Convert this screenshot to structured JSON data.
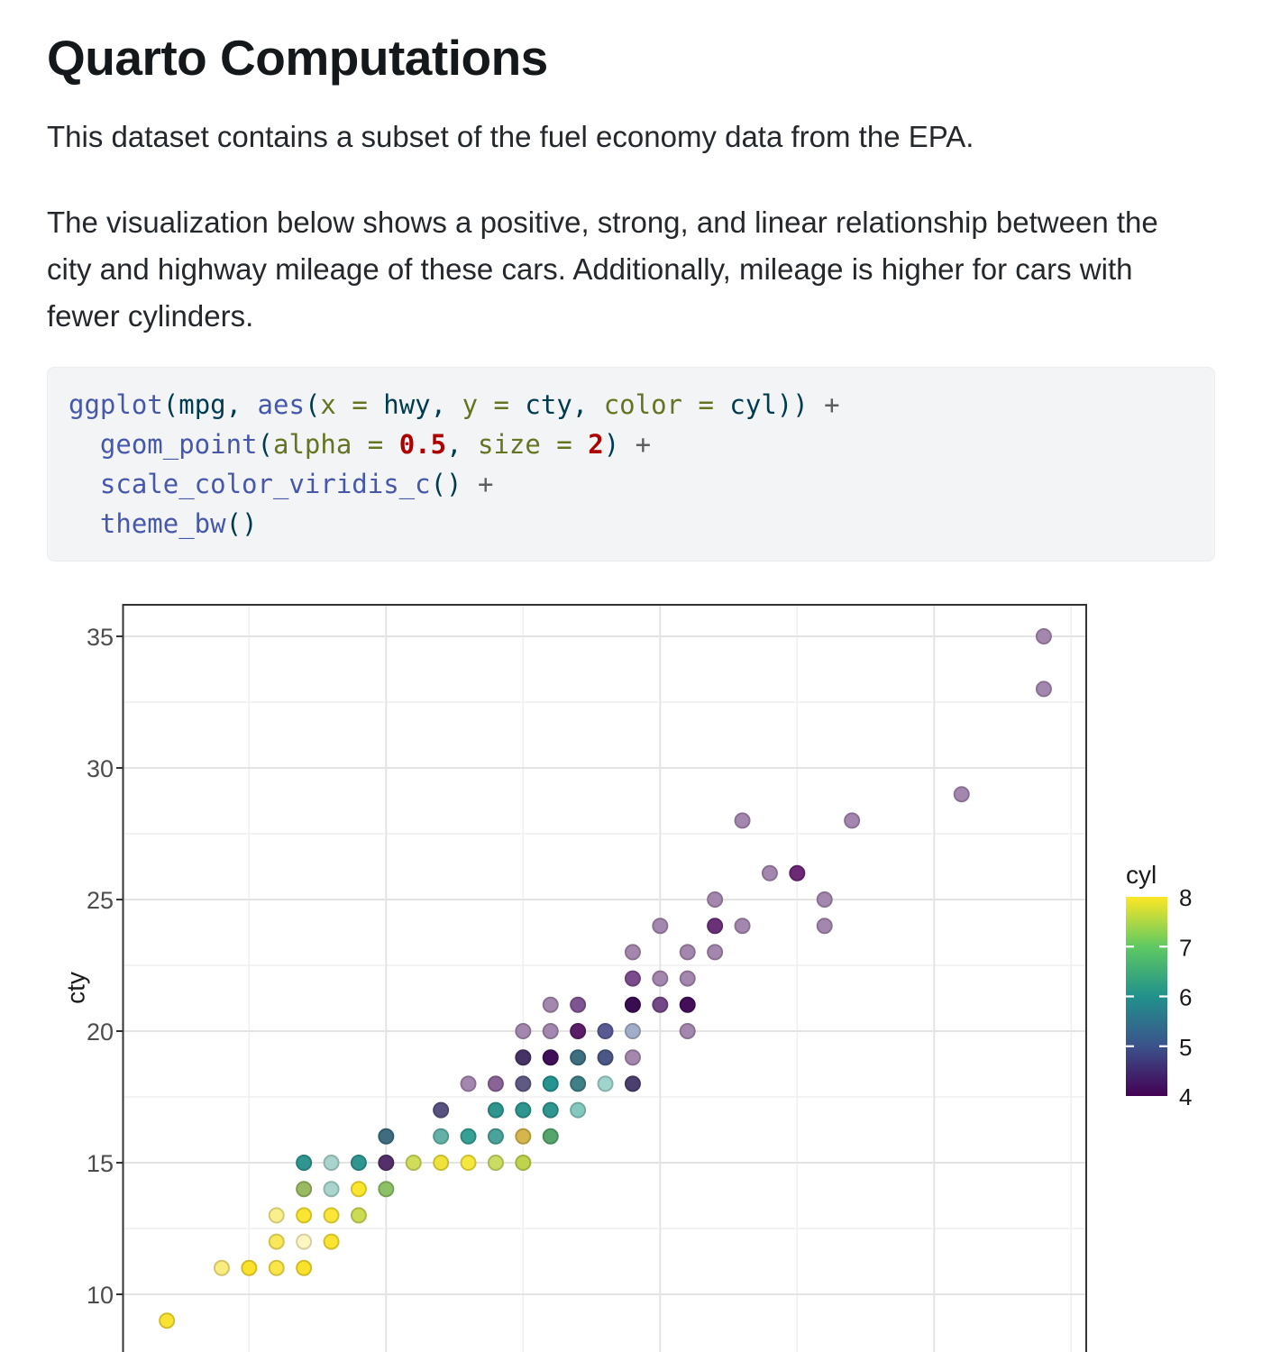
{
  "doc": {
    "title": "Quarto Computations",
    "paragraph1": "This dataset contains a subset of the fuel economy data from the EPA.",
    "paragraph2": "The visualization below shows a positive, strong, and linear relationship between the\ncity and highway mileage of these cars. Additionally, mileage is higher for cars with\nfewer cylinders."
  },
  "code_block": {
    "language": "r",
    "lines": [
      [
        {
          "t": "ggplot",
          "c": "fn"
        },
        {
          "t": "(",
          "c": "pr"
        },
        {
          "t": "mpg",
          "c": "va"
        },
        {
          "t": ", ",
          "c": "pr"
        },
        {
          "t": "aes",
          "c": "fn"
        },
        {
          "t": "(",
          "c": "pr"
        },
        {
          "t": "x = ",
          "c": "kw"
        },
        {
          "t": "hwy",
          "c": "va"
        },
        {
          "t": ", ",
          "c": "pr"
        },
        {
          "t": "y = ",
          "c": "kw"
        },
        {
          "t": "cty",
          "c": "va"
        },
        {
          "t": ", ",
          "c": "pr"
        },
        {
          "t": "color = ",
          "c": "kw"
        },
        {
          "t": "cyl",
          "c": "va"
        },
        {
          "t": "))",
          "c": "pr"
        },
        {
          "t": " +",
          "c": "op"
        }
      ],
      [
        {
          "t": "  ",
          "c": "va"
        },
        {
          "t": "geom_point",
          "c": "fn"
        },
        {
          "t": "(",
          "c": "pr"
        },
        {
          "t": "alpha = ",
          "c": "kw"
        },
        {
          "t": "0.5",
          "c": "nu"
        },
        {
          "t": ", ",
          "c": "pr"
        },
        {
          "t": "size = ",
          "c": "kw"
        },
        {
          "t": "2",
          "c": "nu"
        },
        {
          "t": ")",
          "c": "pr"
        },
        {
          "t": " +",
          "c": "op"
        }
      ],
      [
        {
          "t": "  ",
          "c": "va"
        },
        {
          "t": "scale_color_viridis_c",
          "c": "fn"
        },
        {
          "t": "()",
          "c": "pr"
        },
        {
          "t": " +",
          "c": "op"
        }
      ],
      [
        {
          "t": "  ",
          "c": "va"
        },
        {
          "t": "theme_bw",
          "c": "fn"
        },
        {
          "t": "()",
          "c": "pr"
        }
      ]
    ]
  },
  "chart_data": {
    "type": "scatter",
    "x_field": "hwy",
    "y_field": "cty",
    "ylabel": "cty",
    "xlim_shown": [
      10.4,
      45.6
    ],
    "y_ticks": [
      35,
      30,
      25,
      20,
      15,
      10
    ],
    "y_minor_gridlines": [
      32.5,
      27.5,
      22.5,
      17.5,
      12.5
    ],
    "x_major_gridlines": [
      20,
      30,
      40
    ],
    "x_minor_gridlines": [
      15,
      25,
      35,
      45
    ],
    "grid": true,
    "theme": "bw",
    "point_alpha": 0.5,
    "colors": {
      "panel_border": "#333333",
      "major_grid": "#e4e4e4",
      "minor_grid": "#efefef",
      "tick": "#333333",
      "tick_label": "#4d4d4d",
      "axis_title": "#1a1a1a"
    },
    "legend": {
      "title": "cyl",
      "position": "right",
      "labels": [
        "8",
        "7",
        "6",
        "5",
        "4"
      ],
      "gradient_stops": {
        "8": "#FDE725",
        "7": "#5EC962",
        "6": "#21918C",
        "5": "#3B528B",
        "4": "#440154"
      }
    },
    "points": [
      {
        "hwy": 44,
        "cty": 35,
        "fill": "#A487AE"
      },
      {
        "hwy": 44,
        "cty": 33,
        "fill": "#A487AE"
      },
      {
        "hwy": 41,
        "cty": 29,
        "fill": "#A487AE"
      },
      {
        "hwy": 33,
        "cty": 28,
        "fill": "#A487AE"
      },
      {
        "hwy": 37,
        "cty": 28,
        "fill": "#A487AE"
      },
      {
        "hwy": 34,
        "cty": 26,
        "fill": "#A487AE"
      },
      {
        "hwy": 35,
        "cty": 26,
        "fill": "#6B2976"
      },
      {
        "hwy": 32,
        "cty": 25,
        "fill": "#A487AE"
      },
      {
        "hwy": 36,
        "cty": 25,
        "fill": "#A487AE"
      },
      {
        "hwy": 30,
        "cty": 24,
        "fill": "#A487AE"
      },
      {
        "hwy": 32,
        "cty": 24,
        "fill": "#6A3179"
      },
      {
        "hwy": 33,
        "cty": 24,
        "fill": "#A487AE"
      },
      {
        "hwy": 36,
        "cty": 24,
        "fill": "#A487AE"
      },
      {
        "hwy": 29,
        "cty": 23,
        "fill": "#A487AE"
      },
      {
        "hwy": 31,
        "cty": 23,
        "fill": "#A487AE"
      },
      {
        "hwy": 32,
        "cty": 23,
        "fill": "#A487AE"
      },
      {
        "hwy": 29,
        "cty": 22,
        "fill": "#7C4B8D"
      },
      {
        "hwy": 30,
        "cty": 22,
        "fill": "#A487AE"
      },
      {
        "hwy": 31,
        "cty": 22,
        "fill": "#A487AE"
      },
      {
        "hwy": 26,
        "cty": 21,
        "fill": "#A487AE"
      },
      {
        "hwy": 27,
        "cty": 21,
        "fill": "#7F5591"
      },
      {
        "hwy": 29,
        "cty": 21,
        "fill": "#3A0C52"
      },
      {
        "hwy": 30,
        "cty": 21,
        "fill": "#744787"
      },
      {
        "hwy": 31,
        "cty": 21,
        "fill": "#440E59"
      },
      {
        "hwy": 25,
        "cty": 20,
        "fill": "#A487AE"
      },
      {
        "hwy": 26,
        "cty": 20,
        "fill": "#A487AE"
      },
      {
        "hwy": 27,
        "cty": 20,
        "fill": "#5A1D68"
      },
      {
        "hwy": 28,
        "cty": 20,
        "fill": "#585A92"
      },
      {
        "hwy": 29,
        "cty": 20,
        "fill": "#A2ADCA"
      },
      {
        "hwy": 31,
        "cty": 20,
        "fill": "#A487AE"
      },
      {
        "hwy": 25,
        "cty": 19,
        "fill": "#463365"
      },
      {
        "hwy": 26,
        "cty": 19,
        "fill": "#3F0F58"
      },
      {
        "hwy": 27,
        "cty": 19,
        "fill": "#3E6F80"
      },
      {
        "hwy": 28,
        "cty": 19,
        "fill": "#4B5886"
      },
      {
        "hwy": 29,
        "cty": 19,
        "fill": "#A487AE"
      },
      {
        "hwy": 23,
        "cty": 18,
        "fill": "#A487AE"
      },
      {
        "hwy": 24,
        "cty": 18,
        "fill": "#8A6397"
      },
      {
        "hwy": 25,
        "cty": 18,
        "fill": "#5F5A84"
      },
      {
        "hwy": 26,
        "cty": 18,
        "fill": "#259390"
      },
      {
        "hwy": 27,
        "cty": 18,
        "fill": "#3F7F87"
      },
      {
        "hwy": 28,
        "cty": 18,
        "fill": "#9FD5CC"
      },
      {
        "hwy": 29,
        "cty": 18,
        "fill": "#4A3F6E"
      },
      {
        "hwy": 22,
        "cty": 17,
        "fill": "#57527F"
      },
      {
        "hwy": 24,
        "cty": 17,
        "fill": "#2F968F"
      },
      {
        "hwy": 25,
        "cty": 17,
        "fill": "#2F968F"
      },
      {
        "hwy": 26,
        "cty": 17,
        "fill": "#2F968F"
      },
      {
        "hwy": 27,
        "cty": 17,
        "fill": "#85C8BE"
      },
      {
        "hwy": 20,
        "cty": 16,
        "fill": "#3F6D80"
      },
      {
        "hwy": 22,
        "cty": 16,
        "fill": "#63B2A8"
      },
      {
        "hwy": 23,
        "cty": 16,
        "fill": "#35A194"
      },
      {
        "hwy": 24,
        "cty": 16,
        "fill": "#4AA39A"
      },
      {
        "hwy": 25,
        "cty": 16,
        "fill": "#D4B64C"
      },
      {
        "hwy": 26,
        "cty": 16,
        "fill": "#55A56C"
      },
      {
        "hwy": 17,
        "cty": 15,
        "fill": "#2F968F"
      },
      {
        "hwy": 18,
        "cty": 15,
        "fill": "#A8D4CD"
      },
      {
        "hwy": 19,
        "cty": 15,
        "fill": "#2F968F"
      },
      {
        "hwy": 20,
        "cty": 15,
        "fill": "#54306B"
      },
      {
        "hwy": 21,
        "cty": 15,
        "fill": "#CFDD5A"
      },
      {
        "hwy": 22,
        "cty": 15,
        "fill": "#EEE23B"
      },
      {
        "hwy": 23,
        "cty": 15,
        "fill": "#F5E73C"
      },
      {
        "hwy": 24,
        "cty": 15,
        "fill": "#CBDC63"
      },
      {
        "hwy": 25,
        "cty": 15,
        "fill": "#BFD34E"
      },
      {
        "hwy": 17,
        "cty": 14,
        "fill": "#9ABA62"
      },
      {
        "hwy": 18,
        "cty": 14,
        "fill": "#A9D5CE"
      },
      {
        "hwy": 19,
        "cty": 14,
        "fill": "#FBE62E"
      },
      {
        "hwy": 20,
        "cty": 14,
        "fill": "#8CC168"
      },
      {
        "hwy": 16,
        "cty": 13,
        "fill": "#FAEF8E"
      },
      {
        "hwy": 17,
        "cty": 13,
        "fill": "#FBE531"
      },
      {
        "hwy": 18,
        "cty": 13,
        "fill": "#FAE637"
      },
      {
        "hwy": 19,
        "cty": 13,
        "fill": "#CCDC52"
      },
      {
        "hwy": 16,
        "cty": 12,
        "fill": "#F9E85C"
      },
      {
        "hwy": 17,
        "cty": 12,
        "fill": "#FDF6C0"
      },
      {
        "hwy": 18,
        "cty": 12,
        "fill": "#FBE42F"
      },
      {
        "hwy": 14,
        "cty": 11,
        "fill": "#FAEC7D"
      },
      {
        "hwy": 15,
        "cty": 11,
        "fill": "#FAE12C"
      },
      {
        "hwy": 16,
        "cty": 11,
        "fill": "#FAE54A"
      },
      {
        "hwy": 17,
        "cty": 11,
        "fill": "#FAE12C"
      },
      {
        "hwy": 12,
        "cty": 9,
        "fill": "#FAE235"
      }
    ]
  }
}
